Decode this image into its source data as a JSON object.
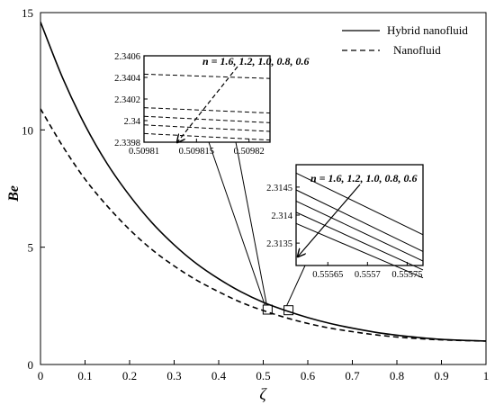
{
  "chart_data": {
    "type": "line",
    "xlabel": "ζ",
    "ylabel": "Be",
    "xlim": [
      0,
      1
    ],
    "ylim": [
      0,
      15
    ],
    "x_ticks": [
      "0",
      "0.1",
      "0.2",
      "0.3",
      "0.4",
      "0.5",
      "0.6",
      "0.7",
      "0.8",
      "0.9",
      "1"
    ],
    "y_ticks": [
      "0",
      "5",
      "10",
      "15"
    ],
    "grid": false,
    "legend_position": "top-right",
    "series": [
      {
        "name": "Hybrid nanofluid",
        "style": "solid",
        "x": [
          0,
          0.05,
          0.1,
          0.15,
          0.2,
          0.25,
          0.3,
          0.35,
          0.4,
          0.45,
          0.5,
          0.55,
          0.6,
          0.65,
          0.7,
          0.75,
          0.8,
          0.85,
          0.9,
          0.95,
          1.0
        ],
        "y": [
          14.6,
          12.2,
          10.2,
          8.55,
          7.2,
          6.05,
          5.1,
          4.3,
          3.65,
          3.1,
          2.65,
          2.3,
          2.0,
          1.75,
          1.55,
          1.38,
          1.25,
          1.15,
          1.07,
          1.03,
          1.0
        ]
      },
      {
        "name": "Nanofluid",
        "style": "dashed",
        "x": [
          0,
          0.05,
          0.1,
          0.15,
          0.2,
          0.25,
          0.3,
          0.35,
          0.4,
          0.45,
          0.5,
          0.55,
          0.6,
          0.65,
          0.7,
          0.75,
          0.8,
          0.85,
          0.9,
          0.95,
          1.0
        ],
        "y": [
          10.9,
          9.3,
          7.9,
          6.75,
          5.75,
          4.9,
          4.2,
          3.6,
          3.1,
          2.65,
          2.3,
          2.0,
          1.75,
          1.55,
          1.4,
          1.27,
          1.17,
          1.1,
          1.05,
          1.02,
          1.0
        ]
      }
    ],
    "annotations": [
      {
        "text": "n = 1.6, 1.2, 1.0, 0.8, 0.6",
        "zoom_x": 0.5098,
        "zoom_y": 2.34,
        "inset": {
          "x_ticks": [
            "0.50981",
            "0.509815",
            "0.50982"
          ],
          "y_ticks": [
            "2.3406",
            "2.3404",
            "2.3402",
            "2.34",
            "2.3398"
          ],
          "line_style": "dashed",
          "xlim": [
            0.50981,
            0.509822
          ],
          "ylim": [
            2.3398,
            2.3406
          ],
          "lines": [
            [
              2.34043,
              2.34039
            ],
            [
              2.34012,
              2.34007
            ],
            [
              2.34004,
              2.33998
            ],
            [
              2.33996,
              2.3399
            ],
            [
              2.33988,
              2.33982
            ]
          ]
        }
      },
      {
        "text": "n = 1.6, 1.2, 1.0, 0.8, 0.6",
        "zoom_x": 0.5567,
        "zoom_y": 2.314,
        "inset": {
          "x_ticks": [
            "0.55565",
            "0.5557",
            "0.55575"
          ],
          "y_ticks": [
            "2.3145",
            "2.314",
            "2.3135"
          ],
          "line_style": "solid",
          "xlim": [
            0.55561,
            0.55577
          ],
          "ylim": [
            2.3131,
            2.3149
          ],
          "lines": [
            [
              2.31475,
              2.31365
            ],
            [
              2.31445,
              2.31335
            ],
            [
              2.31425,
              2.31318
            ],
            [
              2.31405,
              2.31302
            ],
            [
              2.31385,
              2.31288
            ]
          ]
        }
      }
    ]
  }
}
